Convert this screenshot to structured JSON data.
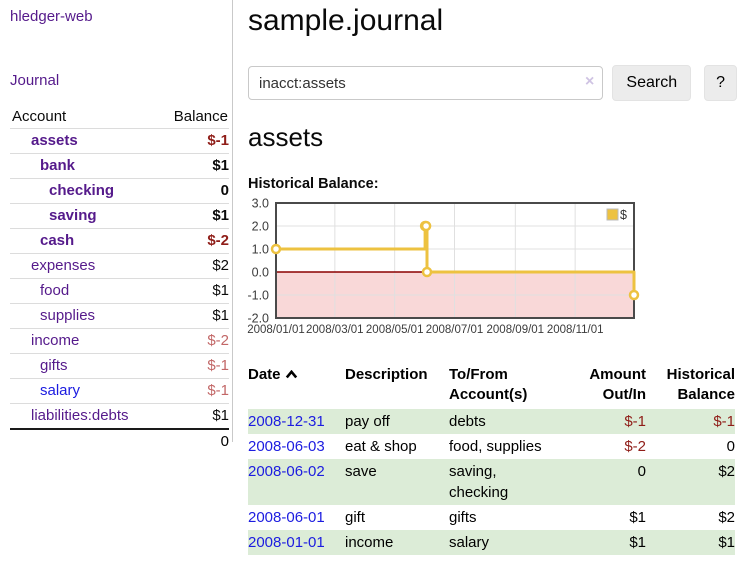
{
  "app_title": "hledger-web",
  "sidebar": {
    "journal_link": "Journal",
    "accounts": {
      "col_account": "Account",
      "col_balance": "Balance",
      "rows": [
        {
          "name": "assets",
          "balance": "$-1",
          "level": 1,
          "bold": true,
          "bal_class": "neg-strong",
          "link_class": ""
        },
        {
          "name": "bank",
          "balance": "$1",
          "level": 2,
          "bold": true,
          "bal_class": "",
          "link_class": ""
        },
        {
          "name": "checking",
          "balance": "0",
          "level": 3,
          "bold": true,
          "bal_class": "",
          "link_class": ""
        },
        {
          "name": "saving",
          "balance": "$1",
          "level": 3,
          "bold": true,
          "bal_class": "",
          "link_class": ""
        },
        {
          "name": "cash",
          "balance": "$-2",
          "level": 2,
          "bold": true,
          "bal_class": "neg-strong",
          "link_class": ""
        },
        {
          "name": "expenses",
          "balance": "$2",
          "level": 1,
          "bold": false,
          "bal_class": "",
          "link_class": ""
        },
        {
          "name": "food",
          "balance": "$1",
          "level": 2,
          "bold": false,
          "bal_class": "",
          "link_class": ""
        },
        {
          "name": "supplies",
          "balance": "$1",
          "level": 2,
          "bold": false,
          "bal_class": "",
          "link_class": ""
        },
        {
          "name": "income",
          "balance": "$-2",
          "level": 1,
          "bold": false,
          "bal_class": "neg-soft",
          "link_class": ""
        },
        {
          "name": "gifts",
          "balance": "$-1",
          "level": 2,
          "bold": false,
          "bal_class": "neg-soft",
          "link_class": ""
        },
        {
          "name": "salary",
          "balance": "$-1",
          "level": 2,
          "bold": false,
          "bal_class": "neg-soft",
          "link_class": "blue"
        },
        {
          "name": "liabilities:debts",
          "balance": "$1",
          "level": 1,
          "bold": false,
          "bal_class": "",
          "link_class": ""
        }
      ],
      "total": "0"
    }
  },
  "main": {
    "page_title": "sample.journal",
    "search": {
      "value": "inacct:assets",
      "clear_label": "×",
      "search_button": "Search",
      "help_button": "?"
    },
    "account_heading": "assets",
    "section_heading": "Historical Balance:"
  },
  "chart_data": {
    "type": "line",
    "step": true,
    "title": "Historical Balance of assets",
    "xlim": [
      "2008-01-01",
      "2008-12-31"
    ],
    "ylim": [
      -2,
      3
    ],
    "y_ticks": [
      3.0,
      2.0,
      1.0,
      0.0,
      -1.0,
      -2.0
    ],
    "x_ticks": [
      {
        "date": "2008-01-01",
        "label": "2008/01/01"
      },
      {
        "date": "2008-03-01",
        "label": "2008/03/01"
      },
      {
        "date": "2008-05-01",
        "label": "2008/05/01"
      },
      {
        "date": "2008-07-01",
        "label": "2008/07/01"
      },
      {
        "date": "2008-09-01",
        "label": "2008/09/01"
      },
      {
        "date": "2008-11-01",
        "label": "2008/11/01"
      }
    ],
    "grid_on": true,
    "legend_position": "top-right",
    "colors": {
      "series": "#edc240",
      "negative_region": "#f9d8d8",
      "zero_line": "#8b0000",
      "grid": "#e0e0e0",
      "border": "#4a4a4a",
      "tick_text": "#3c3c3c"
    },
    "series": [
      {
        "name": "$",
        "points": [
          [
            "2008-01-01",
            1
          ],
          [
            "2008-06-01",
            2
          ],
          [
            "2008-06-02",
            2
          ],
          [
            "2008-06-03",
            0
          ],
          [
            "2008-12-31",
            -1
          ]
        ]
      }
    ]
  },
  "register": {
    "headers": {
      "date": "Date",
      "description": "Description",
      "tofrom": "To/From Account(s)",
      "amount": "Amount Out/In",
      "balance": "Historical Balance"
    },
    "rows": [
      {
        "date": "2008-12-31",
        "description": "pay off",
        "accounts": "debts",
        "amount": "$-1",
        "amount_neg": true,
        "balance": "$-1",
        "balance_neg": true
      },
      {
        "date": "2008-06-03",
        "description": "eat & shop",
        "accounts": "food, supplies",
        "amount": "$-2",
        "amount_neg": true,
        "balance": "0",
        "balance_neg": false
      },
      {
        "date": "2008-06-02",
        "description": "save",
        "accounts": "saving, checking",
        "amount": "0",
        "amount_neg": false,
        "balance": "$2",
        "balance_neg": false
      },
      {
        "date": "2008-06-01",
        "description": "gift",
        "accounts": "gifts",
        "amount": "$1",
        "amount_neg": false,
        "balance": "$2",
        "balance_neg": false
      },
      {
        "date": "2008-01-01",
        "description": "income",
        "accounts": "salary",
        "amount": "$1",
        "amount_neg": false,
        "balance": "$1",
        "balance_neg": false
      }
    ]
  }
}
